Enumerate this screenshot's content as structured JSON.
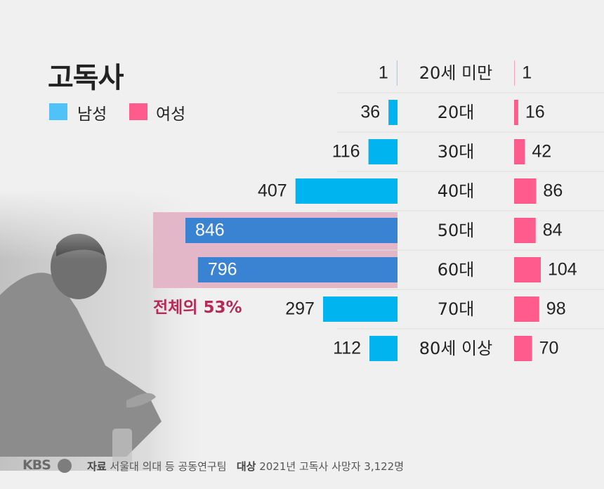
{
  "title": "고독사",
  "legend": [
    {
      "label": "남성",
      "color": "#4fc3f7"
    },
    {
      "label": "여성",
      "color": "#ff5c8d"
    }
  ],
  "colors": {
    "male": "#00b4f0",
    "male_highlight": "#3a82d2",
    "female": "#ff5c8d",
    "highlight_bg": "#e3b6c8"
  },
  "highlight_label": "전체의 53%",
  "chart_data": {
    "type": "bar",
    "categories": [
      "20세 미만",
      "20대",
      "30대",
      "40대",
      "50대",
      "60대",
      "70대",
      "80세 이상"
    ],
    "series": [
      {
        "name": "남성",
        "values": [
          1,
          36,
          116,
          407,
          846,
          796,
          297,
          112
        ]
      },
      {
        "name": "여성",
        "values": [
          1,
          16,
          42,
          86,
          84,
          104,
          98,
          70
        ]
      }
    ],
    "highlighted_categories": [
      "50대",
      "60대"
    ],
    "legend_position": "top-left"
  },
  "footer": {
    "logo": "KBS",
    "source_key": "자료",
    "source_value": "서울대 의대 등 공동연구팀",
    "target_key": "대상",
    "target_value": "2021년 고독사 사망자 3,122명"
  }
}
